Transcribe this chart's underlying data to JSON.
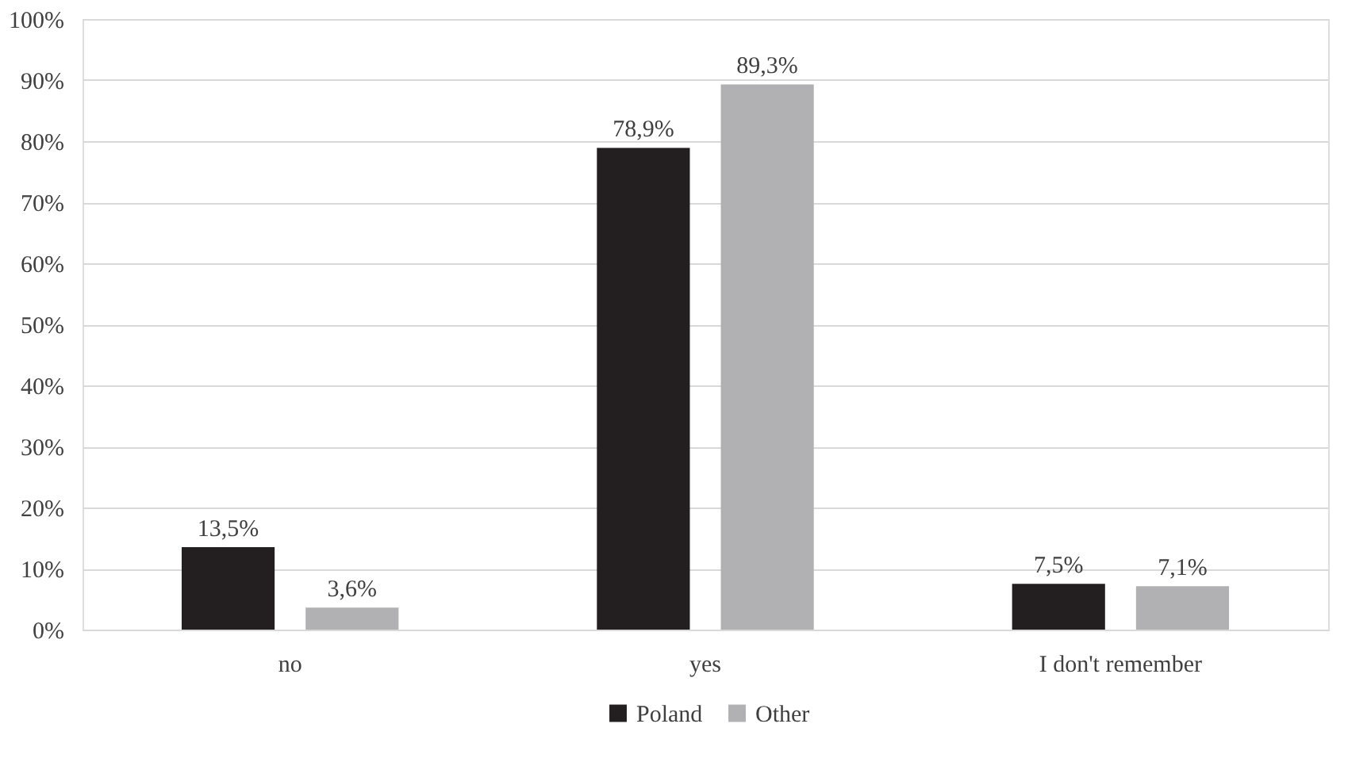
{
  "chart_data": {
    "type": "bar",
    "categories": [
      "no",
      "yes",
      "I don't remember"
    ],
    "series": [
      {
        "name": "Poland",
        "color": "#231f20",
        "values": [
          13.5,
          78.9,
          7.5
        ],
        "value_labels": [
          "13,5%",
          "78,9%",
          "7,5%"
        ]
      },
      {
        "name": "Other",
        "color": "#b1b1b3",
        "values": [
          3.6,
          89.3,
          7.1
        ],
        "value_labels": [
          "3,6%",
          "89,3%",
          "7,1%"
        ]
      }
    ],
    "ylim": [
      0,
      100
    ],
    "yticks": [
      {
        "value": 0,
        "label": "0%"
      },
      {
        "value": 10,
        "label": "10%"
      },
      {
        "value": 20,
        "label": "20%"
      },
      {
        "value": 30,
        "label": "30%"
      },
      {
        "value": 40,
        "label": "40%"
      },
      {
        "value": 50,
        "label": "50%"
      },
      {
        "value": 60,
        "label": "60%"
      },
      {
        "value": 70,
        "label": "70%"
      },
      {
        "value": 80,
        "label": "80%"
      },
      {
        "value": 90,
        "label": "90%"
      },
      {
        "value": 100,
        "label": "100%"
      }
    ],
    "grid": "y",
    "legend": "bottom"
  }
}
